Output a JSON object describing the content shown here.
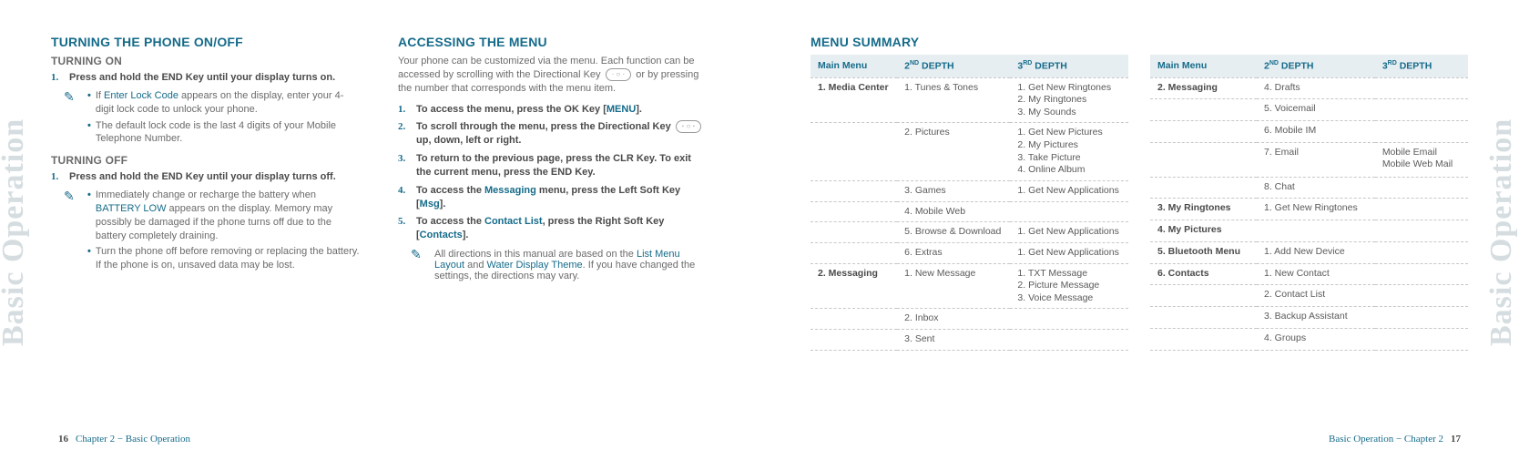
{
  "side_tab": "Basic Operation",
  "left_page": {
    "col1": {
      "h2": "TURNING THE PHONE ON/OFF",
      "on_h3": "TURNING ON",
      "on_step_num": "1.",
      "on_step": "Press and hold the END Key until your display turns on.",
      "on_note1_a": "If ",
      "on_note1_link": "Enter Lock Code",
      "on_note1_b": " appears on the display, enter your 4-digit lock code to unlock your phone.",
      "on_note2": "The default lock code is the last 4 digits of your Mobile Telephone Number.",
      "off_h3": "TURNING OFF",
      "off_step_num": "1.",
      "off_step": "Press and hold the END Key until your display turns off.",
      "off_note1_a": "Immediately change or recharge the battery when ",
      "off_note1_link": "BATTERY LOW",
      "off_note1_b": " appears on the display. Memory may possibly be damaged if the phone turns off due to the battery completely draining.",
      "off_note2": "Turn the phone off before removing or replacing the battery. If the phone is on, unsaved data may be lost."
    },
    "col2": {
      "h2": "ACCESSING THE MENU",
      "intro_a": "Your phone can be customized via the menu. Each function can be accessed by scrolling with the Directional Key ",
      "intro_b": " or by pressing the number that corresponds with the menu item.",
      "s1_num": "1.",
      "s1_a": "To access the menu, press the OK Key [",
      "s1_link": "MENU",
      "s1_b": "].",
      "s2_num": "2.",
      "s2_a": "To scroll through the menu, press the Directional Key ",
      "s2_b": " up, down, left or right.",
      "s3_num": "3.",
      "s3": "To return to the previous page, press the CLR Key. To exit the current menu, press the END Key.",
      "s4_num": "4.",
      "s4_a": "To access the ",
      "s4_link1": "Messaging",
      "s4_b": " menu, press the Left Soft Key [",
      "s4_link2": "Msg",
      "s4_c": "].",
      "s5_num": "5.",
      "s5_a": "To access the ",
      "s5_link1": "Contact List",
      "s5_b": ", press the Right Soft Key [",
      "s5_link2": "Contacts",
      "s5_c": "].",
      "tip_a": "All directions in this manual are based on the ",
      "tip_link1": "List Menu Layout",
      "tip_b": " and ",
      "tip_link2": "Water Display Theme",
      "tip_c": ". If you have changed the settings, the directions may vary."
    },
    "footer_page": "16",
    "footer_text": "Chapter 2 − Basic Operation"
  },
  "right_page": {
    "h2": "MENU SUMMARY",
    "headers": {
      "main": "Main Menu",
      "d2a": "2",
      "d2sup": "ND",
      "d2b": " DEPTH",
      "d3a": "3",
      "d3sup": "RD",
      "d3b": " DEPTH"
    },
    "table1": [
      {
        "main": "1. Media Center",
        "d2": "1. Tunes & Tones",
        "d3": [
          "1. Get New Ringtones",
          "2. My Ringtones",
          "3. My Sounds"
        ]
      },
      {
        "main": "",
        "d2": "2. Pictures",
        "d3": [
          "1. Get New Pictures",
          "2. My Pictures",
          "3. Take Picture",
          "4. Online Album"
        ]
      },
      {
        "main": "",
        "d2": "3. Games",
        "d3": [
          "1. Get New Applications"
        ]
      },
      {
        "main": "",
        "d2": "4. Mobile Web",
        "d3": []
      },
      {
        "main": "",
        "d2": "5. Browse & Download",
        "d3": [
          "1. Get New Applications"
        ]
      },
      {
        "main": "",
        "d2": "6. Extras",
        "d3": [
          "1. Get New Applications"
        ]
      },
      {
        "main": "2. Messaging",
        "d2": "1. New Message",
        "d3": [
          "1. TXT Message",
          "2. Picture Message",
          "3. Voice Message"
        ]
      },
      {
        "main": "",
        "d2": "2. Inbox",
        "d3": []
      },
      {
        "main": "",
        "d2": "3. Sent",
        "d3": []
      }
    ],
    "table2": [
      {
        "main": "2. Messaging",
        "d2": "4. Drafts",
        "d3": []
      },
      {
        "main": "",
        "d2": "5. Voicemail",
        "d3": []
      },
      {
        "main": "",
        "d2": "6. Mobile IM",
        "d3": []
      },
      {
        "main": "",
        "d2": "7. Email",
        "d3": [
          "Mobile Email",
          "Mobile Web Mail"
        ]
      },
      {
        "main": "",
        "d2": "8. Chat",
        "d3": []
      },
      {
        "main": "3. My Ringtones",
        "d2": "1. Get New Ringtones",
        "d3": []
      },
      {
        "main": "4. My Pictures",
        "d2": "",
        "d3": []
      },
      {
        "main": "5. Bluetooth Menu",
        "d2": "1. Add New Device",
        "d3": []
      },
      {
        "main": "6. Contacts",
        "d2": "1. New Contact",
        "d3": []
      },
      {
        "main": "",
        "d2": "2. Contact List",
        "d3": []
      },
      {
        "main": "",
        "d2": "3. Backup Assistant",
        "d3": []
      },
      {
        "main": "",
        "d2": "4. Groups",
        "d3": []
      }
    ],
    "footer_text": "Basic Operation − Chapter 2",
    "footer_page": "17"
  }
}
